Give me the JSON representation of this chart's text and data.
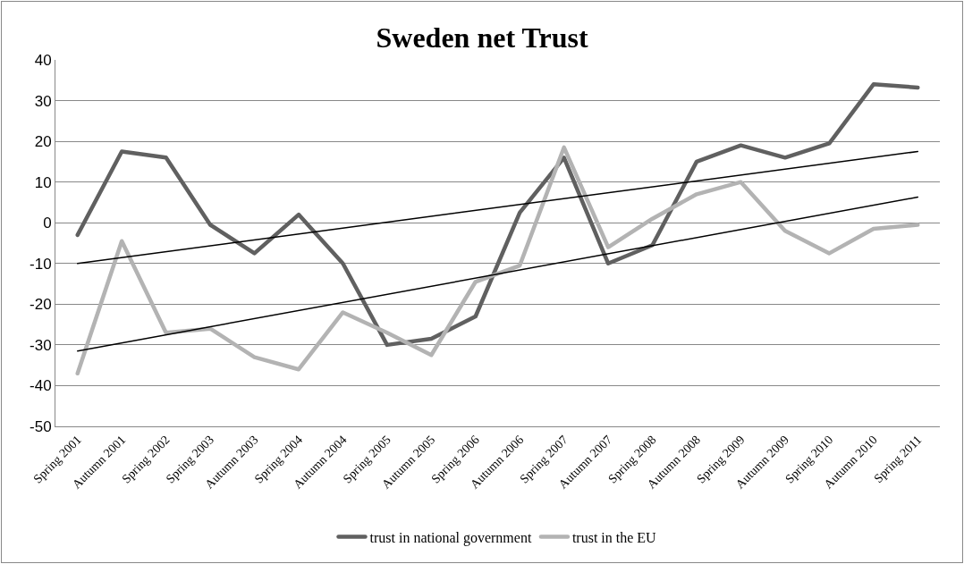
{
  "chart_data": {
    "type": "line",
    "title": "Sweden net Trust",
    "categories": [
      "Spring 2001",
      "Autumn 2001",
      "Spring 2002",
      "Spring 2003",
      "Autumn 2003",
      "Spring 2004",
      "Autumn 2004",
      "Spring 2005",
      "Autumn 2005",
      "Spring 2006",
      "Autumn 2006",
      "Spring 2007",
      "Autumn 2007",
      "Spring 2008",
      "Autumn 2008",
      "Spring 2009",
      "Autumn 2009",
      "Spring 2010",
      "Autumn 2010",
      "Spring 2011"
    ],
    "series": [
      {
        "name": "trust in national government",
        "color": "#606060",
        "values": [
          -3,
          17.5,
          16,
          -0.5,
          -7.5,
          2,
          -10,
          -30,
          -28.5,
          -23,
          2.5,
          16,
          -10,
          -5.5,
          15,
          19,
          16,
          19.5,
          34,
          33.2
        ]
      },
      {
        "name": "trust in the EU",
        "color": "#b3b3b3",
        "values": [
          -37,
          -4.5,
          -27,
          -26,
          -33,
          -36,
          -22,
          -27,
          -32.5,
          -14.5,
          -10.5,
          18.5,
          -6,
          1,
          7,
          10,
          -2,
          -7.5,
          -1.5,
          -0.5
        ]
      },
      {
        "type": "line",
        "color": "#000000",
        "x": [
          "Spring 2001",
          "Spring 2011"
        ],
        "values": [
          -10,
          17.5
        ]
      },
      {
        "type": "line",
        "color": "#000000",
        "x": [
          "Spring 2001",
          "Spring 2011"
        ],
        "values": [
          -31.5,
          6.3
        ]
      }
    ],
    "ylim": [
      -50,
      40
    ],
    "yticks": [
      -50,
      -40,
      -30,
      -20,
      -10,
      0,
      10,
      20,
      30,
      40
    ],
    "grid": "y",
    "legend": "bottom",
    "marker": "none",
    "line_style": "solid"
  }
}
